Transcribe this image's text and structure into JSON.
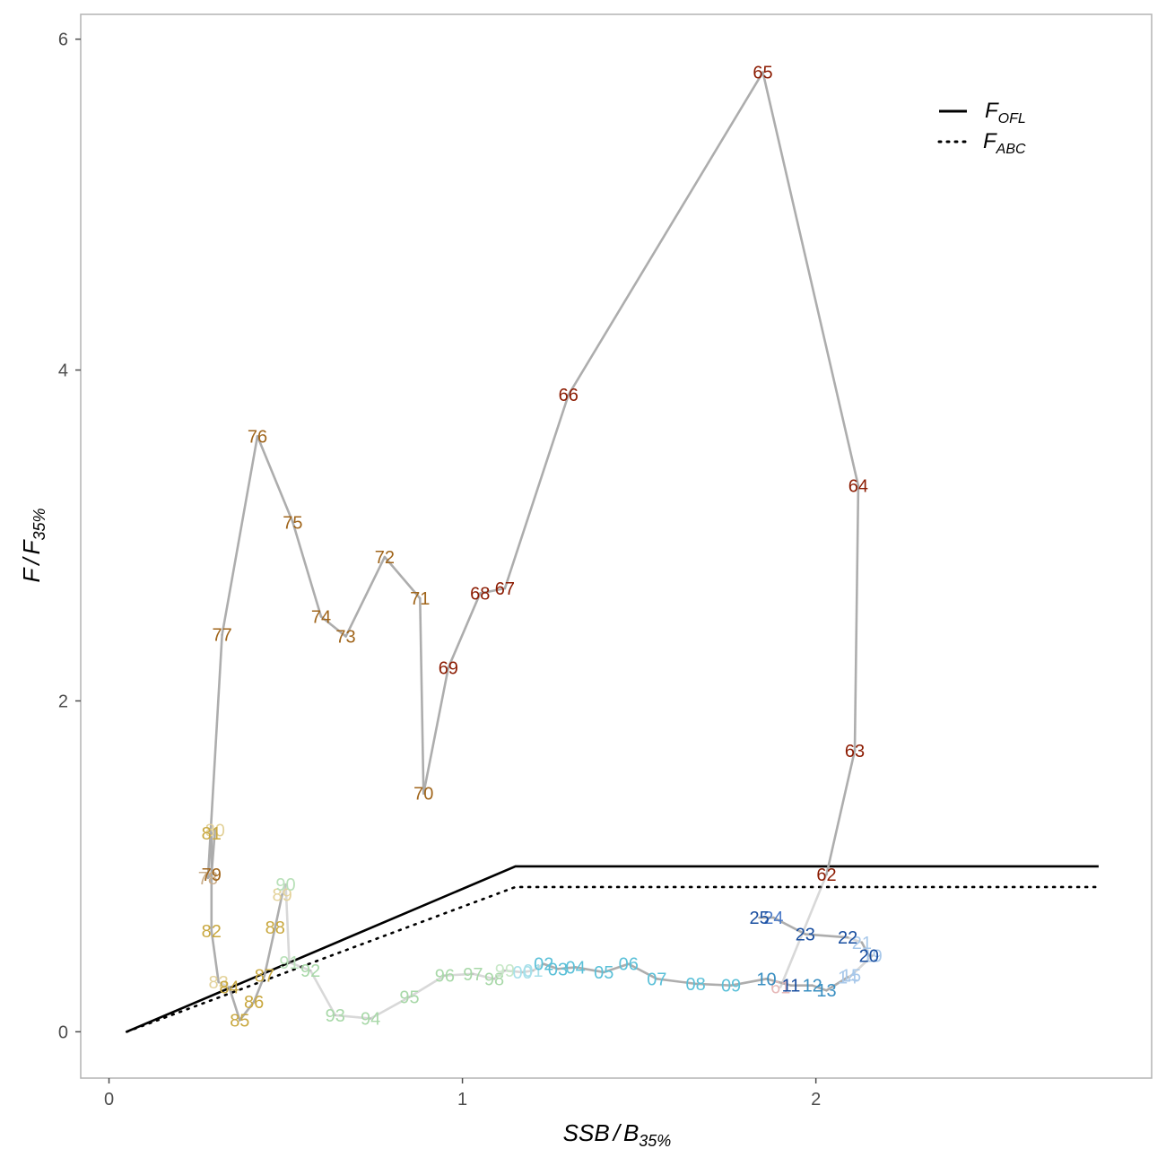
{
  "chart_data": {
    "type": "scatter",
    "title": "",
    "xlabel": {
      "main": "SSB",
      "sep": "/",
      "base": "B",
      "sub": "35%"
    },
    "ylabel": {
      "main": "F",
      "sep": "/",
      "base": "F",
      "sub": "35%"
    },
    "xlim": [
      -0.08,
      2.95
    ],
    "ylim": [
      -0.28,
      6.15
    ],
    "x_ticks": [
      0,
      1,
      2
    ],
    "x_tick_labels": [
      "0",
      "1",
      "2"
    ],
    "y_ticks": [
      0,
      2,
      4,
      6
    ],
    "y_tick_labels": [
      "0",
      "2",
      "4",
      "6"
    ],
    "grid": false,
    "legend_position": "top-right",
    "legend": [
      {
        "label_main": "F",
        "label_sub": "OFL",
        "style": "solid"
      },
      {
        "label_main": "F",
        "label_sub": "ABC",
        "style": "dotted"
      }
    ],
    "control_rules": [
      {
        "name": "F_OFL",
        "style": "solid",
        "x": [
          0.05,
          1.15,
          2.8
        ],
        "y": [
          0,
          1.0,
          1.0
        ]
      },
      {
        "name": "F_ABC",
        "style": "dotted",
        "x": [
          0.05,
          1.15,
          2.8
        ],
        "y": [
          0,
          0.875,
          0.875
        ]
      }
    ],
    "trajectory_color": "#a9a9a9",
    "points": [
      {
        "label": "61",
        "x": 1.9,
        "y": 0.27,
        "color": "#e6b8b8"
      },
      {
        "label": "62",
        "x": 2.03,
        "y": 0.95,
        "color": "#8b1a00"
      },
      {
        "label": "63",
        "x": 2.11,
        "y": 1.7,
        "color": "#8b1a00"
      },
      {
        "label": "64",
        "x": 2.12,
        "y": 3.3,
        "color": "#8b1a00"
      },
      {
        "label": "65",
        "x": 1.85,
        "y": 5.8,
        "color": "#8b1a00"
      },
      {
        "label": "66",
        "x": 1.3,
        "y": 3.85,
        "color": "#8b1a00"
      },
      {
        "label": "67",
        "x": 1.12,
        "y": 2.68,
        "color": "#8b1a00"
      },
      {
        "label": "68",
        "x": 1.05,
        "y": 2.65,
        "color": "#8b1a00"
      },
      {
        "label": "69",
        "x": 0.96,
        "y": 2.2,
        "color": "#8b1a00"
      },
      {
        "label": "70",
        "x": 0.89,
        "y": 1.44,
        "color": "#a0651b"
      },
      {
        "label": "71",
        "x": 0.88,
        "y": 2.62,
        "color": "#a0651b"
      },
      {
        "label": "72",
        "x": 0.78,
        "y": 2.87,
        "color": "#a0651b"
      },
      {
        "label": "73",
        "x": 0.67,
        "y": 2.39,
        "color": "#a0651b"
      },
      {
        "label": "74",
        "x": 0.6,
        "y": 2.51,
        "color": "#a0651b"
      },
      {
        "label": "75",
        "x": 0.52,
        "y": 3.08,
        "color": "#a0651b"
      },
      {
        "label": "76",
        "x": 0.42,
        "y": 3.6,
        "color": "#a0651b"
      },
      {
        "label": "77",
        "x": 0.32,
        "y": 2.4,
        "color": "#a0651b"
      },
      {
        "label": "78",
        "x": 0.28,
        "y": 0.93,
        "color": "#c9ad8a"
      },
      {
        "label": "79",
        "x": 0.29,
        "y": 0.95,
        "color": "#a0651b"
      },
      {
        "label": "80",
        "x": 0.3,
        "y": 1.22,
        "color": "#e3d29a"
      },
      {
        "label": "81",
        "x": 0.29,
        "y": 1.2,
        "color": "#c9a840"
      },
      {
        "label": "82",
        "x": 0.29,
        "y": 0.61,
        "color": "#c9a840"
      },
      {
        "label": "83",
        "x": 0.31,
        "y": 0.3,
        "color": "#e3d29a"
      },
      {
        "label": "84",
        "x": 0.34,
        "y": 0.27,
        "color": "#c9a840"
      },
      {
        "label": "85",
        "x": 0.37,
        "y": 0.07,
        "color": "#c9a840"
      },
      {
        "label": "86",
        "x": 0.41,
        "y": 0.18,
        "color": "#c9a840"
      },
      {
        "label": "87",
        "x": 0.44,
        "y": 0.34,
        "color": "#c9a840"
      },
      {
        "label": "88",
        "x": 0.47,
        "y": 0.63,
        "color": "#c9a840"
      },
      {
        "label": "89",
        "x": 0.49,
        "y": 0.83,
        "color": "#e3d29a"
      },
      {
        "label": "90",
        "x": 0.5,
        "y": 0.89,
        "color": "#b8e0b8"
      },
      {
        "label": "91",
        "x": 0.51,
        "y": 0.42,
        "color": "#b8e0b8"
      },
      {
        "label": "92",
        "x": 0.57,
        "y": 0.37,
        "color": "#a8d8a8"
      },
      {
        "label": "93",
        "x": 0.64,
        "y": 0.1,
        "color": "#a8d8a8"
      },
      {
        "label": "94",
        "x": 0.74,
        "y": 0.08,
        "color": "#a8d8a8"
      },
      {
        "label": "95",
        "x": 0.85,
        "y": 0.21,
        "color": "#a8d8a8"
      },
      {
        "label": "96",
        "x": 0.95,
        "y": 0.34,
        "color": "#a8d8a8"
      },
      {
        "label": "97",
        "x": 1.03,
        "y": 0.35,
        "color": "#a8d8a8"
      },
      {
        "label": "98",
        "x": 1.09,
        "y": 0.32,
        "color": "#a8d8a8"
      },
      {
        "label": "99",
        "x": 1.12,
        "y": 0.37,
        "color": "#c8e8c8"
      },
      {
        "label": "00",
        "x": 1.17,
        "y": 0.36,
        "color": "#a8e0ea"
      },
      {
        "label": "01",
        "x": 1.2,
        "y": 0.37,
        "color": "#a8e0ea"
      },
      {
        "label": "02",
        "x": 1.23,
        "y": 0.41,
        "color": "#5bc0d8"
      },
      {
        "label": "03",
        "x": 1.27,
        "y": 0.38,
        "color": "#5bc0d8"
      },
      {
        "label": "04",
        "x": 1.32,
        "y": 0.39,
        "color": "#5bc0d8"
      },
      {
        "label": "05",
        "x": 1.4,
        "y": 0.36,
        "color": "#5bc0d8"
      },
      {
        "label": "06",
        "x": 1.47,
        "y": 0.41,
        "color": "#5bc0d8"
      },
      {
        "label": "07",
        "x": 1.55,
        "y": 0.32,
        "color": "#5bc0d8"
      },
      {
        "label": "08",
        "x": 1.66,
        "y": 0.29,
        "color": "#5bc0d8"
      },
      {
        "label": "09",
        "x": 1.76,
        "y": 0.28,
        "color": "#5bc0d8"
      },
      {
        "label": "10",
        "x": 1.86,
        "y": 0.32,
        "color": "#3a8fc2"
      },
      {
        "label": "11",
        "x": 1.93,
        "y": 0.28,
        "color": "#1a4fa0"
      },
      {
        "label": "12",
        "x": 1.99,
        "y": 0.28,
        "color": "#3a8fc2"
      },
      {
        "label": "13",
        "x": 2.03,
        "y": 0.25,
        "color": "#3a8fc2"
      },
      {
        "label": "14",
        "x": 2.09,
        "y": 0.33,
        "color": "#a8c8ea"
      },
      {
        "label": "15",
        "x": 2.1,
        "y": 0.34,
        "color": "#a8c8ea"
      },
      {
        "label": "19",
        "x": 2.16,
        "y": 0.46,
        "color": "#a8c8ea"
      },
      {
        "label": "20",
        "x": 2.15,
        "y": 0.46,
        "color": "#1a4fa0"
      },
      {
        "label": "21",
        "x": 2.13,
        "y": 0.54,
        "color": "#a8c8ea"
      },
      {
        "label": "22",
        "x": 2.09,
        "y": 0.57,
        "color": "#1a4fa0"
      },
      {
        "label": "23",
        "x": 1.97,
        "y": 0.59,
        "color": "#1a4fa0"
      },
      {
        "label": "24",
        "x": 1.88,
        "y": 0.69,
        "color": "#4a7ac8"
      },
      {
        "label": "25",
        "x": 1.84,
        "y": 0.69,
        "color": "#1a4fa0"
      }
    ]
  }
}
